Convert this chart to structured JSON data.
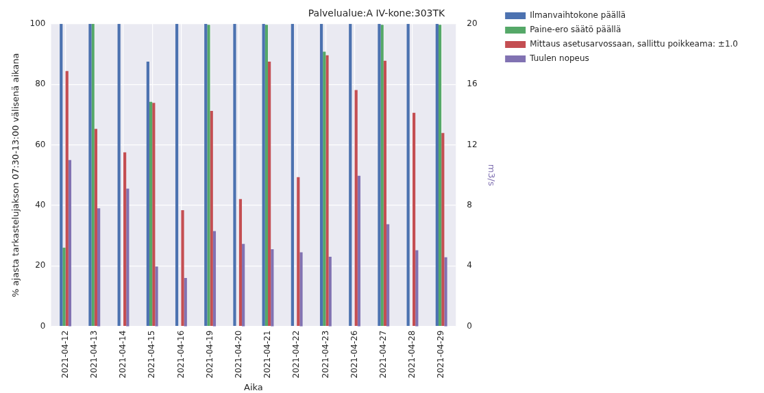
{
  "chart_data": {
    "type": "bar",
    "title": "Palvelualue:A IV-kone:303TK",
    "xlabel": "Aika",
    "ylabel": "% ajasta tarkastelujakson 07:30-13:00 välisenä aikana",
    "y2label": "m3/s",
    "categories": [
      "2021-04-12",
      "2021-04-13",
      "2021-04-14",
      "2021-04-15",
      "2021-04-16",
      "2021-04-19",
      "2021-04-20",
      "2021-04-21",
      "2021-04-22",
      "2021-04-23",
      "2021-04-26",
      "2021-04-27",
      "2021-04-28",
      "2021-04-29"
    ],
    "series": [
      {
        "name": "Ilmanvaihtokone päällä",
        "color": "#4c72b0",
        "values": [
          100,
          100,
          100,
          87.5,
          100,
          100,
          100,
          100,
          100,
          100,
          100,
          100,
          100,
          100
        ]
      },
      {
        "name": "Paine-ero säätö päällä",
        "color": "#55a868",
        "values": [
          26,
          100,
          0,
          74.2,
          0,
          99.7,
          0,
          99.7,
          0,
          90.8,
          0,
          99.7,
          0,
          99.7
        ]
      },
      {
        "name": "Mittaus asetusarvossaan, sallittu poikkeama: ±1.0",
        "color": "#c44e52",
        "values": [
          84.4,
          65.3,
          57.5,
          73.9,
          38.4,
          71.2,
          42.1,
          87.5,
          49.3,
          89.6,
          78.1,
          87.8,
          70.6,
          63.9
        ]
      },
      {
        "name": "Tuulen nopeus",
        "color": "#8172b2",
        "axis": "y2",
        "values": [
          11.0,
          7.8,
          9.1,
          3.96,
          3.2,
          6.3,
          5.45,
          5.1,
          4.9,
          4.6,
          9.95,
          6.75,
          5.03,
          4.57
        ]
      }
    ],
    "ylim": [
      0,
      100
    ],
    "yticks": [
      0,
      20,
      40,
      60,
      80,
      100
    ],
    "y2lim": [
      0,
      20
    ],
    "y2ticks": [
      0,
      4,
      8,
      12,
      16,
      20
    ],
    "grid": true,
    "legend": "top right"
  }
}
